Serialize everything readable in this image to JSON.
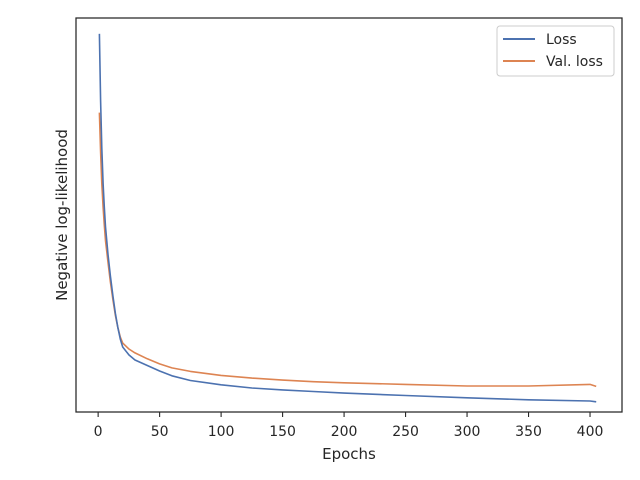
{
  "chart_data": {
    "type": "line",
    "title": "",
    "xlabel": "Epochs",
    "ylabel": "Negative log-likelihood",
    "xlim": [
      -18,
      426
    ],
    "ylim": [
      0,
      100
    ],
    "xticks": [
      0,
      50,
      100,
      150,
      200,
      250,
      300,
      350,
      400
    ],
    "yticks_shown": false,
    "grid": false,
    "legend_position": "top-right",
    "colors": {
      "loss": "#4c72b0",
      "val_loss": "#dd8452",
      "axes": "#262626"
    },
    "series": [
      {
        "name": "Loss",
        "color": "#4c72b0",
        "x": [
          1,
          2,
          3,
          4,
          5,
          6,
          8,
          10,
          12,
          14,
          16,
          18,
          20,
          25,
          30,
          40,
          50,
          60,
          75,
          100,
          125,
          150,
          175,
          200,
          250,
          300,
          350,
          400,
          405
        ],
        "y": [
          96,
          79,
          67,
          58,
          52,
          47,
          40,
          34.5,
          29.5,
          25,
          21.5,
          18.5,
          16.5,
          14.5,
          13.2,
          11.8,
          10.4,
          9.2,
          8.0,
          6.9,
          6.1,
          5.6,
          5.2,
          4.8,
          4.2,
          3.6,
          3.1,
          2.8,
          2.6
        ]
      },
      {
        "name": "Val. loss",
        "color": "#dd8452",
        "x": [
          1,
          2,
          3,
          4,
          5,
          6,
          8,
          10,
          12,
          14,
          16,
          18,
          20,
          25,
          30,
          40,
          50,
          60,
          75,
          100,
          125,
          150,
          175,
          200,
          250,
          300,
          350,
          400,
          405
        ],
        "y": [
          76,
          66,
          58,
          52,
          47.5,
          43.5,
          38,
          33,
          28.5,
          24.5,
          21.5,
          19,
          17.5,
          16,
          15,
          13.5,
          12.2,
          11.2,
          10.3,
          9.3,
          8.6,
          8.1,
          7.7,
          7.4,
          7.0,
          6.6,
          6.6,
          7.0,
          6.5
        ]
      }
    ]
  }
}
